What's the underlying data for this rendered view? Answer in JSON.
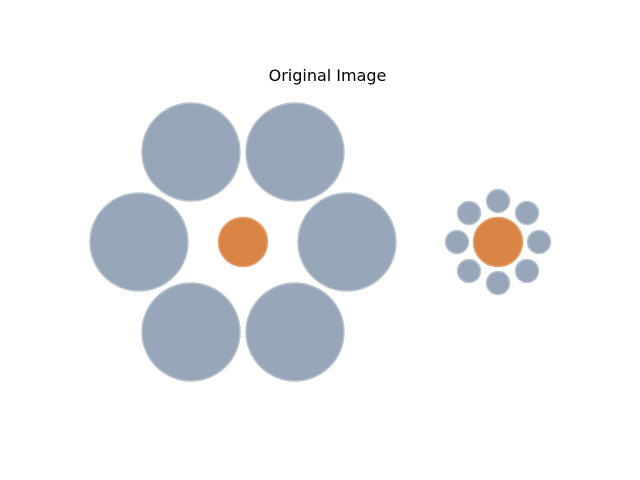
{
  "title": "Original Image",
  "colors": {
    "surround": "#97a6b9",
    "surround_edge": "#b9c3cf",
    "center": "#d98444",
    "center_edge": "#e6a270",
    "background": "#ffffff"
  },
  "left_group": {
    "surround_count": 6,
    "center": "orange-circle"
  },
  "right_group": {
    "surround_count": 8,
    "center": "orange-circle"
  }
}
